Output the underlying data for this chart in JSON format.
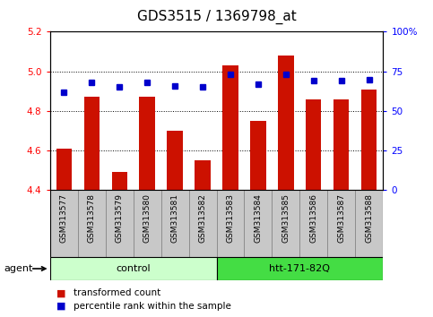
{
  "title": "GDS3515 / 1369798_at",
  "samples": [
    "GSM313577",
    "GSM313578",
    "GSM313579",
    "GSM313580",
    "GSM313581",
    "GSM313582",
    "GSM313583",
    "GSM313584",
    "GSM313585",
    "GSM313586",
    "GSM313587",
    "GSM313588"
  ],
  "bar_values": [
    4.61,
    4.87,
    4.49,
    4.87,
    4.7,
    4.55,
    5.03,
    4.75,
    5.08,
    4.86,
    4.86,
    4.91
  ],
  "percentile_values": [
    62,
    68,
    65,
    68,
    66,
    65,
    73,
    67,
    73,
    69,
    69,
    70
  ],
  "bar_bottom": 4.4,
  "ylim_left": [
    4.4,
    5.2
  ],
  "ylim_right": [
    0,
    100
  ],
  "yticks_left": [
    4.4,
    4.6,
    4.8,
    5.0,
    5.2
  ],
  "yticks_right": [
    0,
    25,
    50,
    75,
    100
  ],
  "ytick_labels_right": [
    "0",
    "25",
    "50",
    "75",
    "100%"
  ],
  "groups": [
    {
      "label": "control",
      "start": 0,
      "end": 6,
      "color": "#ccffcc"
    },
    {
      "label": "htt-171-82Q",
      "start": 6,
      "end": 12,
      "color": "#44dd44"
    }
  ],
  "group_row_label": "agent",
  "bar_color": "#cc1100",
  "percentile_color": "#0000cc",
  "legend_items": [
    {
      "label": "transformed count",
      "color": "#cc1100"
    },
    {
      "label": "percentile rank within the sample",
      "color": "#0000cc"
    }
  ],
  "title_fontsize": 11,
  "tick_fontsize": 7.5,
  "xlabel_fontsize": 6.5,
  "group_fontsize": 8,
  "legend_fontsize": 7.5,
  "cell_bg": "#c8c8c8",
  "cell_border": "#888888",
  "plot_bg": "#ffffff"
}
